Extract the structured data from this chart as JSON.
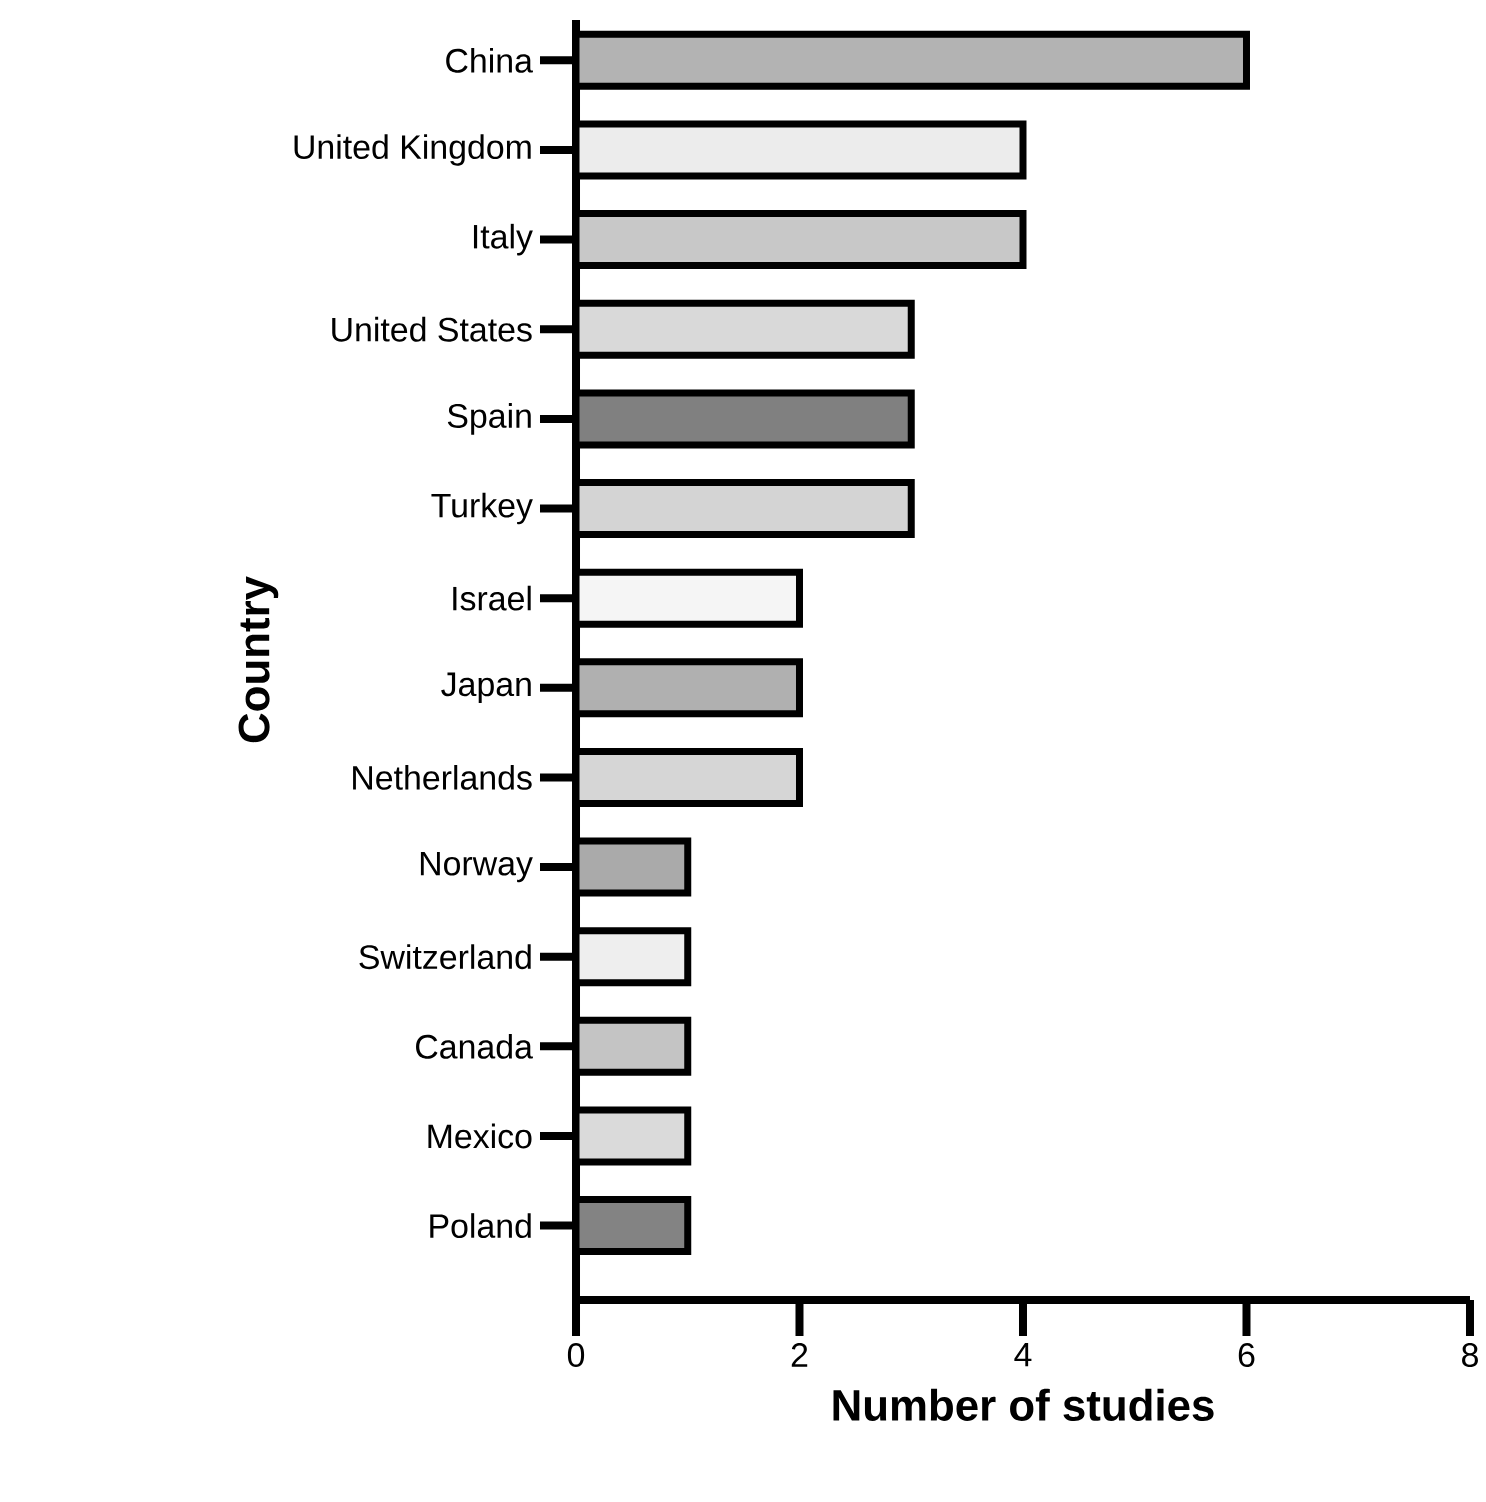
{
  "chart_data": {
    "type": "bar",
    "orientation": "horizontal",
    "categories": [
      "China",
      "United Kingdom",
      "Italy",
      "United States",
      "Spain",
      "Turkey",
      "Israel",
      "Japan",
      "Netherlands",
      "Norway",
      "Switzerland",
      "Canada",
      "Mexico",
      "Poland"
    ],
    "values": [
      6,
      4,
      4,
      3,
      3,
      3,
      2,
      2,
      2,
      1,
      1,
      1,
      1,
      1
    ],
    "colors": [
      "#b3b3b3",
      "#ececec",
      "#c8c8c8",
      "#d9d9d9",
      "#808080",
      "#d4d4d4",
      "#f5f5f5",
      "#b0b0b0",
      "#d6d6d6",
      "#aaaaaa",
      "#eeeeee",
      "#c4c4c4",
      "#dadada",
      "#838383"
    ],
    "xlim": [
      0,
      8
    ],
    "xticks": [
      0,
      2,
      4,
      6,
      8
    ],
    "xlabel": "Number of studies",
    "ylabel": "Country"
  }
}
